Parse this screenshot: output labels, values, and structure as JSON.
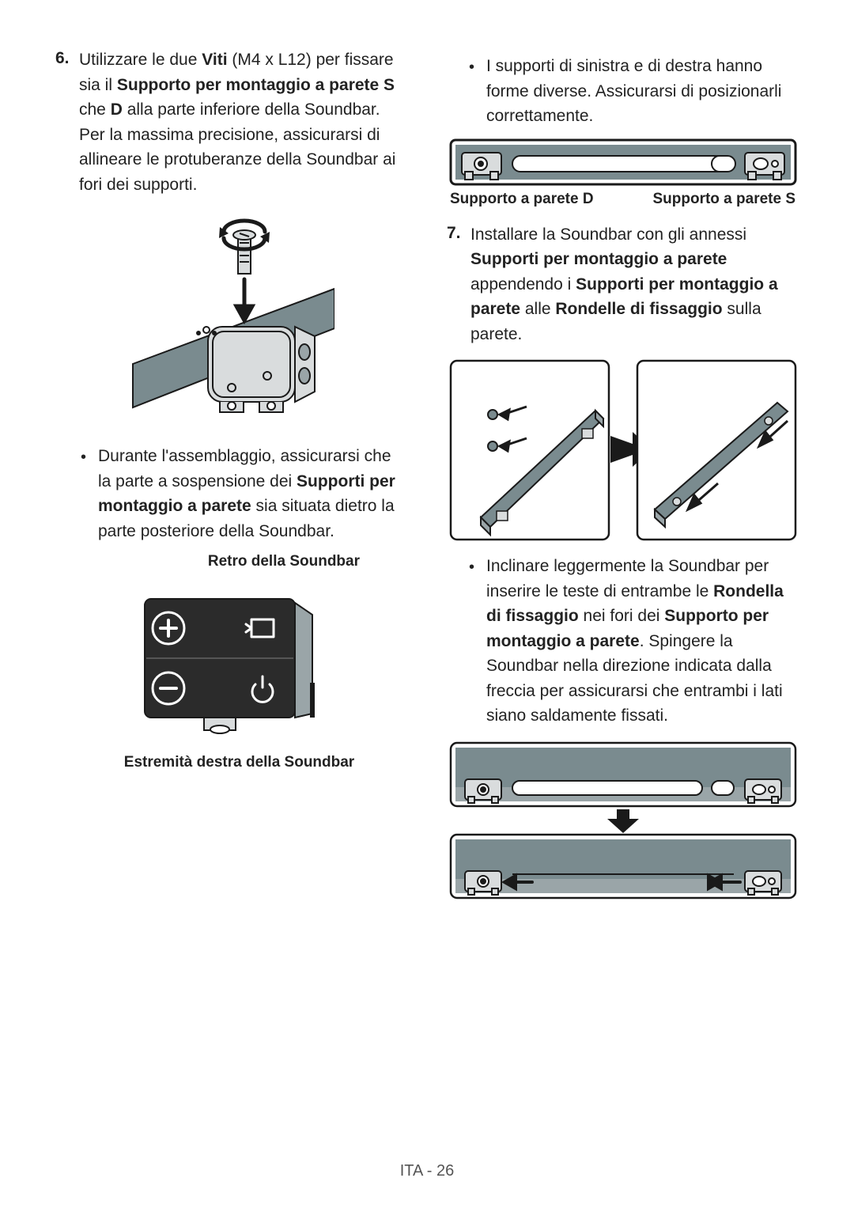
{
  "colors": {
    "stroke": "#1a1a1a",
    "fill_steel": "#7a8b8f",
    "fill_light": "#d9dcdd",
    "fill_dark": "#2b2b2b",
    "fill_mid": "#9aa5a8",
    "white": "#ffffff"
  },
  "left": {
    "step6_prefix": "6.",
    "step6_html": "Utilizzare le due <b>Viti</b> (M4 x L12) per fissare sia il <b>Supporto per montaggio a parete S</b> che <b>D</b> alla parte inferiore della Soundbar. Per la massima precisione, assicurarsi di allineare le protuberanze della Soundbar ai fori dei supporti.",
    "bullet1_html": "Durante l'assemblaggio, assicurarsi che la parte a sospensione dei <b>Supporti per montaggio a parete</b> sia situata dietro la parte posteriore della Soundbar.",
    "caption_rear": "Retro della Soundbar",
    "caption_end": "Estremità destra della Soundbar"
  },
  "right": {
    "bullet_top_html": "I supporti di sinistra e di destra hanno forme diverse. Assicurarsi di posizionarli correttamente.",
    "label_d": "Supporto a parete D",
    "label_s": "Supporto a parete S",
    "step7_prefix": "7.",
    "step7_html": "Installare la Soundbar con gli annessi <b>Supporti per montaggio a parete</b> appendendo i <b>Supporti per montaggio a parete</b> alle <b>Rondelle di fissaggio</b> sulla parete.",
    "bullet2_html": "Inclinare leggermente la Soundbar per inserire le teste di entrambe le <b>Rondella di fissaggio</b> nei fori dei <b>Supporto per montaggio a parete</b>. Spingere la Soundbar nella direzione indicata dalla freccia per assicurarsi che entrambi i lati siano saldamente fissati."
  },
  "footer": "ITA - 26"
}
